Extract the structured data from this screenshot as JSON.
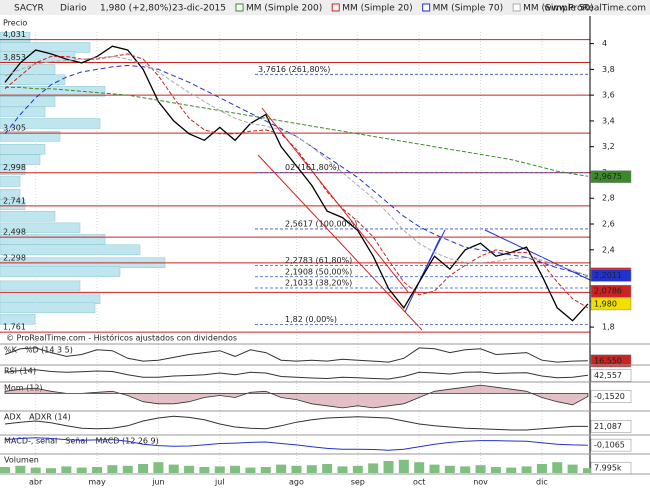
{
  "header": {
    "symbol": "SACYR",
    "period": "Diario",
    "price": "1,980 (+2,80%)",
    "date": "23-dic-2015",
    "site": "www.ProRealTime.com"
  },
  "chart_data": {
    "type": "line",
    "title": "Precio",
    "footer": "© ProRealTime.com - Históricos ajustados con dividendos",
    "categories": [
      null,
      null,
      "abr",
      null,
      null,
      null,
      "may",
      null,
      null,
      null,
      "jun",
      null,
      null,
      null,
      "jul",
      null,
      null,
      null,
      null,
      "ago",
      null,
      null,
      null,
      "sep",
      null,
      null,
      null,
      "oct",
      null,
      null,
      null,
      "nov",
      null,
      null,
      null,
      "dic",
      null,
      null,
      null
    ],
    "ylim": [
      1.7,
      4.09
    ],
    "yticks": [
      4,
      {
        "value": 3.8,
        "label": "3,8"
      },
      {
        "value": 3.6,
        "label": "3,6"
      },
      {
        "value": 3.4,
        "label": "3,4"
      },
      {
        "value": 3.2,
        "label": "3,2"
      },
      3,
      {
        "value": 2.8,
        "label": "2,8"
      },
      {
        "value": 2.6,
        "label": "2,6"
      },
      {
        "value": 2.4,
        "label": "2,4"
      },
      {
        "value": 2.2,
        "label": "2,2"
      },
      2,
      {
        "value": 1.8,
        "label": "1,8"
      }
    ],
    "series": [
      {
        "name": "Precio",
        "color": "#000000",
        "values": [
          3.7,
          3.85,
          3.95,
          3.92,
          3.88,
          3.85,
          3.9,
          3.98,
          3.95,
          3.8,
          3.55,
          3.4,
          3.3,
          3.25,
          3.35,
          3.25,
          3.38,
          3.45,
          3.2,
          3.05,
          2.9,
          2.7,
          2.65,
          2.55,
          2.35,
          2.1,
          1.95,
          2.15,
          2.35,
          2.25,
          2.4,
          2.45,
          2.35,
          2.38,
          2.42,
          2.2,
          1.95,
          1.85,
          1.98
        ]
      },
      {
        "name": "MM (Simple 200)",
        "color": "#3a8a2a",
        "dash": "4,2",
        "values": [
          3.66,
          3.66,
          3.65,
          3.65,
          3.64,
          3.63,
          3.62,
          3.61,
          3.6,
          3.58,
          3.56,
          3.54,
          3.52,
          3.5,
          3.48,
          3.46,
          3.44,
          3.42,
          3.4,
          3.38,
          3.36,
          3.34,
          3.32,
          3.3,
          3.28,
          3.26,
          3.24,
          3.22,
          3.2,
          3.18,
          3.16,
          3.14,
          3.12,
          3.1,
          3.07,
          3.04,
          3.01,
          2.99,
          2.97
        ]
      },
      {
        "name": "MM (Simple 20)",
        "color": "#cc2222",
        "dash": "4,2",
        "values": [
          3.65,
          3.75,
          3.85,
          3.9,
          3.9,
          3.88,
          3.88,
          3.9,
          3.92,
          3.88,
          3.75,
          3.58,
          3.42,
          3.33,
          3.3,
          3.3,
          3.32,
          3.33,
          3.3,
          3.18,
          3.02,
          2.85,
          2.72,
          2.62,
          2.5,
          2.32,
          2.15,
          2.05,
          2.08,
          2.2,
          2.28,
          2.35,
          2.4,
          2.38,
          2.38,
          2.3,
          2.15,
          2.02,
          1.95
        ]
      },
      {
        "name": "MM (Simple 70)",
        "color": "#2233cc",
        "dash": "5,3",
        "values": [
          3.3,
          3.45,
          3.58,
          3.68,
          3.74,
          3.78,
          3.8,
          3.82,
          3.83,
          3.82,
          3.8,
          3.75,
          3.7,
          3.64,
          3.58,
          3.52,
          3.46,
          3.4,
          3.34,
          3.28,
          3.2,
          3.12,
          3.04,
          2.96,
          2.86,
          2.76,
          2.66,
          2.58,
          2.52,
          2.47,
          2.42,
          2.4,
          2.38,
          2.36,
          2.34,
          2.3,
          2.26,
          2.23,
          2.2
        ]
      },
      {
        "name": "MM (Simple 50)",
        "color": "#aaaaaa",
        "dash": "4,2",
        "values": [
          3.75,
          3.8,
          3.84,
          3.86,
          3.87,
          3.88,
          3.89,
          3.9,
          3.88,
          3.84,
          3.78,
          3.7,
          3.62,
          3.55,
          3.48,
          3.42,
          3.38,
          3.36,
          3.33,
          3.28,
          3.2,
          3.1,
          3.0,
          2.9,
          2.8,
          2.68,
          2.55,
          2.45,
          2.38,
          2.33,
          2.3,
          2.3,
          2.31,
          2.33,
          2.34,
          2.32,
          2.28,
          2.24,
          2.2
        ]
      }
    ],
    "levels": [
      {
        "value": 4.031,
        "label": "4,031"
      },
      {
        "value": 3.853,
        "label": "3,853"
      },
      {
        "value": 3.6,
        "label": null
      },
      {
        "value": 3.305,
        "label": "3,305"
      },
      {
        "value": 2.998,
        "label": "2,998"
      },
      {
        "value": 2.741,
        "label": "2,741"
      },
      {
        "value": 2.498,
        "label": "2,498"
      },
      {
        "value": 2.298,
        "label": "2,298"
      },
      {
        "value": 2.07,
        "label": null
      },
      {
        "value": 1.761,
        "label": "1,761"
      }
    ],
    "fib_levels": [
      {
        "value": 3.7616,
        "label": "3,7616 (261,80%)"
      },
      {
        "value": 3.0,
        "label": "02 (161,80%)"
      },
      {
        "value": 2.5617,
        "label": "2,5617 (100,00%)"
      },
      {
        "value": 2.2783,
        "label": "2,2783 (61,80%)"
      },
      {
        "value": 2.1908,
        "label": "2,1908 (50,00%)"
      },
      {
        "value": 2.1033,
        "label": "2,1033 (38,20%)"
      },
      {
        "value": 1.82,
        "label": "1,82 (0,00%)"
      }
    ],
    "last_values": [
      {
        "value": 2.9675,
        "label": "2,9675",
        "color": "#3a8a2a"
      },
      {
        "value": 2.2133,
        "label": "2,2133",
        "color": "#cc2222"
      },
      {
        "value": 2.2011,
        "label": "2,2011",
        "color": "#2233cc"
      },
      {
        "value": 2.0786,
        "label": "2,0786",
        "color": "#cc2222"
      },
      {
        "value": 1.98,
        "label": "1,980",
        "color": "#f0e000"
      }
    ],
    "volume_profile": {
      "color": "#bfe6ee",
      "prices": [
        4.05,
        3.97,
        3.9,
        3.8,
        3.72,
        3.63,
        3.55,
        3.47,
        3.38,
        3.28,
        3.18,
        3.1,
        3.02,
        2.93,
        2.83,
        2.75,
        2.66,
        2.57,
        2.48,
        2.4,
        2.3,
        2.23,
        2.12,
        2.02,
        1.95,
        1.86
      ],
      "values": [
        30,
        90,
        75,
        55,
        65,
        105,
        55,
        45,
        100,
        60,
        45,
        40,
        25,
        20,
        20,
        25,
        55,
        80,
        105,
        140,
        165,
        120,
        80,
        100,
        95,
        35
      ]
    }
  },
  "indicators": [
    {
      "type": "line",
      "labels": [
        "%K",
        "%D (14 3 5)"
      ],
      "color": "#333333",
      "ylim": [
        0,
        100
      ],
      "values": [
        50,
        80,
        85,
        60,
        40,
        50,
        75,
        70,
        30,
        15,
        20,
        35,
        50,
        60,
        70,
        40,
        75,
        60,
        20,
        15,
        20,
        15,
        25,
        20,
        15,
        10,
        30,
        85,
        80,
        60,
        75,
        80,
        50,
        55,
        60,
        20,
        10,
        15,
        17
      ],
      "last": {
        "value": 16.55,
        "label": "16,550",
        "color": "#cc2222"
      }
    },
    {
      "type": "line",
      "labels": [
        "RSI (14)"
      ],
      "color": "#333333",
      "ylim": [
        20,
        80
      ],
      "values": [
        55,
        62,
        65,
        58,
        55,
        57,
        60,
        58,
        45,
        35,
        35,
        40,
        42,
        45,
        52,
        45,
        55,
        52,
        38,
        35,
        32,
        30,
        35,
        33,
        30,
        28,
        38,
        55,
        52,
        48,
        55,
        56,
        50,
        52,
        53,
        40,
        33,
        35,
        43
      ],
      "last": {
        "value": 42.557,
        "label": "42,557",
        "color": "#ffffff"
      }
    },
    {
      "type": "area",
      "labels": [
        "Mom (12)"
      ],
      "color": "#c07080",
      "ylim": [
        -0.8,
        0.5
      ],
      "values": [
        0.1,
        0.2,
        0.25,
        0.1,
        0,
        0,
        0.05,
        0.1,
        -0.1,
        -0.4,
        -0.5,
        -0.5,
        -0.4,
        -0.2,
        -0.1,
        -0.2,
        0.05,
        0.1,
        -0.2,
        -0.3,
        -0.5,
        -0.6,
        -0.7,
        -0.6,
        -0.7,
        -0.6,
        -0.5,
        -0.2,
        0.1,
        0.2,
        0.3,
        0.4,
        0.3,
        0.2,
        0.1,
        -0.2,
        -0.4,
        -0.55,
        -0.15
      ],
      "last": {
        "value": -0.152,
        "label": "-0,1520",
        "color": "#ffffff"
      }
    },
    {
      "type": "line",
      "labels": [
        "ADX",
        "ADXR (14)"
      ],
      "color": "#333333",
      "ylim": [
        10,
        45
      ],
      "values": [
        25,
        28,
        30,
        27,
        22,
        18,
        17,
        18,
        22,
        30,
        35,
        38,
        36,
        32,
        25,
        20,
        18,
        17,
        22,
        28,
        32,
        35,
        36,
        37,
        36,
        35,
        30,
        25,
        22,
        20,
        18,
        17,
        16,
        15,
        15,
        17,
        19,
        21,
        21
      ],
      "last": {
        "value": 21.087,
        "label": "21,087",
        "color": "#ffffff"
      }
    },
    {
      "type": "line",
      "labels": [
        "MACD-, señal",
        "Señal",
        "MACD (12 26 9)"
      ],
      "color": "#2233cc",
      "ylim": [
        -0.3,
        0.15
      ],
      "values": [
        0.05,
        0.08,
        0.1,
        0.08,
        0.05,
        0.03,
        0.04,
        0.05,
        0,
        -0.08,
        -0.12,
        -0.14,
        -0.13,
        -0.1,
        -0.06,
        -0.05,
        -0.03,
        -0.02,
        -0.06,
        -0.1,
        -0.15,
        -0.2,
        -0.22,
        -0.22,
        -0.23,
        -0.25,
        -0.22,
        -0.15,
        -0.08,
        -0.03,
        0,
        0.02,
        0.02,
        0.01,
        0,
        -0.04,
        -0.08,
        -0.1,
        -0.11
      ],
      "last": {
        "value": -0.1065,
        "label": "-0,1065",
        "color": "#ffffff"
      }
    },
    {
      "type": "bar",
      "labels": [
        "Volumen"
      ],
      "color": "#7fbf7f",
      "ylim": [
        0,
        30
      ],
      "values": [
        10,
        12,
        9,
        8,
        11,
        9,
        10,
        13,
        12,
        15,
        18,
        14,
        12,
        10,
        11,
        12,
        9,
        10,
        14,
        12,
        13,
        15,
        11,
        12,
        16,
        20,
        22,
        18,
        14,
        12,
        11,
        13,
        10,
        9,
        11,
        15,
        18,
        14,
        7.995
      ],
      "last": {
        "value": 7.995,
        "label": "7.995k",
        "color": "#ffffff"
      }
    }
  ]
}
